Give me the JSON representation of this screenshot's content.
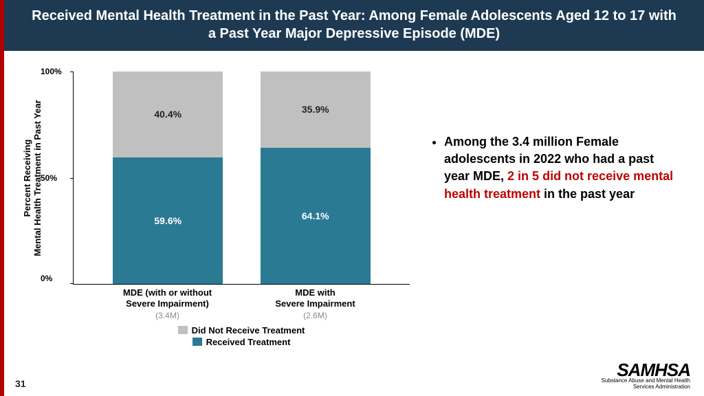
{
  "title": "Received Mental Health Treatment in the Past Year: Among Female Adolescents Aged 12 to 17 with a Past Year Major Depressive Episode (MDE)",
  "chart": {
    "type": "stacked-bar",
    "y_axis_label": "Percent Receiving\nMental Health Treatment in Past Year",
    "y_ticks": [
      "0%",
      "50%",
      "100%"
    ],
    "ylim": [
      0,
      100
    ],
    "categories": [
      {
        "label_l1": "MDE (with or without",
        "label_l2": "Severe Impairment)",
        "sub": "(3.4M)",
        "received": 59.6,
        "not_received": 40.4
      },
      {
        "label_l1": "MDE with",
        "label_l2": "Severe Impairment",
        "sub": "(2.6M)",
        "received": 64.1,
        "not_received": 35.9
      }
    ],
    "colors": {
      "received": "#2a7a94",
      "not_received": "#c0c0c0",
      "axis": "#000000",
      "accent_border": "#b00000",
      "title_bg": "#1e3a52"
    },
    "legend": [
      {
        "label": "Did Not Receive Treatment",
        "color": "#c0c0c0"
      },
      {
        "label": "Received Treatment",
        "color": "#2a7a94"
      }
    ]
  },
  "bullet": {
    "pre": "Among the 3.4 million Female adolescents in 2022 who had a past year MDE, ",
    "em": "2 in 5 did not receive mental health treatment",
    "post": " in the past year"
  },
  "page_number": "31",
  "logo": {
    "name": "SAMHSA",
    "sub1": "Substance Abuse and Mental Health",
    "sub2": "Services Administration"
  }
}
